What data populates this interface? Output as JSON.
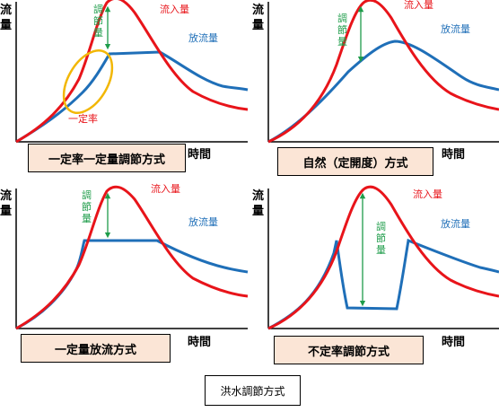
{
  "diagrams": [
    {
      "name": "一定率一定量調節方式",
      "y_label": "流量",
      "x_label": "時間",
      "inflow_label": "流入量",
      "outflow_label": "放流量",
      "regulation_label": "調節量",
      "marker_label": "一定率"
    },
    {
      "name": "自然（定開度）方式",
      "y_label": "流量",
      "x_label": "時間",
      "inflow_label": "流入量",
      "outflow_label": "放流量",
      "regulation_label": "調節量"
    },
    {
      "name": "一定量放流方式",
      "y_label": "流量",
      "x_label": "時間",
      "inflow_label": "流入量",
      "outflow_label": "放流量",
      "regulation_label": "調節量"
    },
    {
      "name": "不定率調節方式",
      "y_label": "流量",
      "x_label": "時間",
      "inflow_label": "流入量",
      "outflow_label": "放流量",
      "regulation_label": "調節量"
    }
  ],
  "caption": "洪水調節方式",
  "colors": {
    "inflow": "#e8141a",
    "outflow": "#1f6fb8",
    "regulation": "#1e9c4a",
    "marker": "#f2b705",
    "marker_text": "#e8141a",
    "label_box": "#fbe5d6"
  }
}
